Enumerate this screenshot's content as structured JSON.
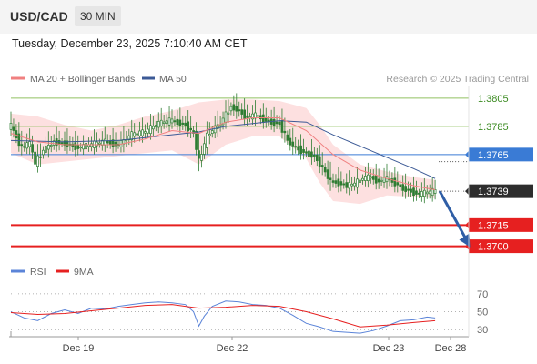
{
  "header": {
    "symbol": "USD/CAD",
    "timeframe": "30 MIN",
    "datetime": "Tuesday, December 23, 2025 7:10:40 AM CET"
  },
  "colors": {
    "candle": "#2e7d32",
    "ma20": "#f08080",
    "bollinger_fill": "#fde0e0",
    "ma50": "#3c5a96",
    "resistance": "#90c060",
    "pivot": "#3a7bd5",
    "support": "#e62020",
    "current_box": "#2d2d2d",
    "arrow": "#2f5ea6",
    "rsi": "#5b84d8",
    "rsi_ma": "#e62020"
  },
  "chart_data": [
    {
      "type": "candlestick",
      "legend": [
        {
          "label": "MA 20 + Bollinger Bands",
          "color": "#f08080"
        },
        {
          "label": "MA 50",
          "color": "#3c5a96"
        }
      ],
      "watermark": "Research © 2025 Trading Central",
      "x_ticks": [
        "Dec 19",
        "Dec 22",
        "Dec 23",
        "Dec 28"
      ],
      "ylim": [
        1.3692,
        1.3812
      ],
      "levels": [
        {
          "kind": "resistance",
          "value": 1.3805,
          "label": "1.3805"
        },
        {
          "kind": "resistance",
          "value": 1.3785,
          "label": "1.3785"
        },
        {
          "kind": "pivot",
          "value": 1.3765,
          "label": "1.3765"
        },
        {
          "kind": "current",
          "value": 1.3739,
          "label": "1.3739"
        },
        {
          "kind": "support",
          "value": 1.3715,
          "label": "1.3715"
        },
        {
          "kind": "support",
          "value": 1.37,
          "label": "1.3700"
        }
      ],
      "close_path": [
        [
          0,
          1.3785
        ],
        [
          4,
          1.377
        ],
        [
          7,
          1.3773
        ],
        [
          9,
          1.3759
        ],
        [
          12,
          1.3768
        ],
        [
          16,
          1.3774
        ],
        [
          20,
          1.3773
        ],
        [
          25,
          1.377
        ],
        [
          30,
          1.3772
        ],
        [
          35,
          1.3774
        ],
        [
          40,
          1.3772
        ],
        [
          45,
          1.3779
        ],
        [
          50,
          1.3781
        ],
        [
          55,
          1.3787
        ],
        [
          60,
          1.3789
        ],
        [
          65,
          1.3786
        ],
        [
          68,
          1.378
        ],
        [
          70,
          1.376
        ],
        [
          73,
          1.3778
        ],
        [
          76,
          1.3784
        ],
        [
          78,
          1.3787
        ],
        [
          80,
          1.3793
        ],
        [
          82,
          1.3799
        ],
        [
          85,
          1.3796
        ],
        [
          88,
          1.3791
        ],
        [
          91,
          1.3793
        ],
        [
          94,
          1.379
        ],
        [
          97,
          1.3788
        ],
        [
          100,
          1.3787
        ],
        [
          103,
          1.3775
        ],
        [
          106,
          1.377
        ],
        [
          110,
          1.3766
        ],
        [
          113,
          1.3764
        ],
        [
          116,
          1.3756
        ],
        [
          119,
          1.3746
        ],
        [
          122,
          1.3745
        ],
        [
          125,
          1.3743
        ],
        [
          128,
          1.3744
        ],
        [
          131,
          1.3748
        ],
        [
          134,
          1.3749
        ],
        [
          137,
          1.3746
        ],
        [
          140,
          1.3748
        ],
        [
          143,
          1.3745
        ],
        [
          146,
          1.3741
        ],
        [
          149,
          1.3739
        ],
        [
          152,
          1.3737
        ],
        [
          155,
          1.3738
        ],
        [
          158,
          1.3739
        ]
      ],
      "ma20": [
        [
          0,
          1.378
        ],
        [
          10,
          1.3774
        ],
        [
          20,
          1.3772
        ],
        [
          30,
          1.3772
        ],
        [
          40,
          1.3772
        ],
        [
          50,
          1.3776
        ],
        [
          60,
          1.3782
        ],
        [
          70,
          1.378
        ],
        [
          80,
          1.3788
        ],
        [
          90,
          1.3791
        ],
        [
          100,
          1.3791
        ],
        [
          110,
          1.3782
        ],
        [
          120,
          1.3765
        ],
        [
          130,
          1.3754
        ],
        [
          140,
          1.3748
        ],
        [
          150,
          1.3743
        ],
        [
          158,
          1.374
        ]
      ],
      "ma50": [
        [
          0,
          1.3775
        ],
        [
          20,
          1.3774
        ],
        [
          40,
          1.3775
        ],
        [
          60,
          1.3779
        ],
        [
          70,
          1.3781
        ],
        [
          80,
          1.3785
        ],
        [
          90,
          1.3787
        ],
        [
          100,
          1.3789
        ],
        [
          110,
          1.3788
        ],
        [
          120,
          1.3779
        ],
        [
          130,
          1.3771
        ],
        [
          140,
          1.3763
        ],
        [
          150,
          1.3755
        ],
        [
          158,
          1.3748
        ]
      ],
      "bb_upper": [
        [
          0,
          1.3794
        ],
        [
          10,
          1.3792
        ],
        [
          20,
          1.3786
        ],
        [
          30,
          1.3782
        ],
        [
          40,
          1.3786
        ],
        [
          50,
          1.3792
        ],
        [
          60,
          1.3796
        ],
        [
          70,
          1.3802
        ],
        [
          80,
          1.3804
        ],
        [
          90,
          1.3804
        ],
        [
          100,
          1.3803
        ],
        [
          110,
          1.3798
        ],
        [
          115,
          1.3786
        ],
        [
          120,
          1.3772
        ],
        [
          130,
          1.3758
        ],
        [
          140,
          1.3753
        ],
        [
          150,
          1.3749
        ],
        [
          158,
          1.3747
        ]
      ],
      "bb_lower": [
        [
          0,
          1.3766
        ],
        [
          10,
          1.3758
        ],
        [
          20,
          1.376
        ],
        [
          30,
          1.3762
        ],
        [
          40,
          1.3764
        ],
        [
          50,
          1.3766
        ],
        [
          60,
          1.3768
        ],
        [
          70,
          1.3758
        ],
        [
          80,
          1.3772
        ],
        [
          90,
          1.3778
        ],
        [
          100,
          1.3778
        ],
        [
          110,
          1.3762
        ],
        [
          115,
          1.3745
        ],
        [
          120,
          1.3732
        ],
        [
          130,
          1.373
        ],
        [
          140,
          1.3736
        ],
        [
          150,
          1.3735
        ],
        [
          158,
          1.3734
        ]
      ],
      "forecast_arrow": {
        "from": [
          158,
          1.3739
        ],
        "to": [
          170,
          1.37
        ]
      }
    },
    {
      "type": "line",
      "name": "rsi-panel",
      "legend": [
        {
          "label": "RSI",
          "color": "#5b84d8"
        },
        {
          "label": "9MA",
          "color": "#e62020"
        }
      ],
      "ylim": [
        18,
        78
      ],
      "y_ticks": [
        70,
        50,
        30
      ],
      "series": [
        {
          "name": "RSI",
          "x": [
            0,
            5,
            10,
            15,
            20,
            25,
            30,
            35,
            40,
            45,
            50,
            55,
            60,
            65,
            68,
            70,
            72,
            75,
            80,
            85,
            90,
            95,
            100,
            105,
            110,
            115,
            120,
            125,
            130,
            135,
            140,
            145,
            150,
            155,
            158
          ],
          "values": [
            50,
            43,
            40,
            48,
            52,
            48,
            54,
            53,
            56,
            58,
            60,
            61,
            60,
            58,
            50,
            34,
            45,
            56,
            62,
            61,
            58,
            57,
            54,
            46,
            37,
            33,
            28,
            27,
            26,
            29,
            34,
            40,
            41,
            44,
            43
          ]
        },
        {
          "name": "9MA",
          "x": [
            0,
            10,
            20,
            30,
            40,
            50,
            60,
            70,
            80,
            90,
            100,
            110,
            120,
            130,
            140,
            150,
            158
          ],
          "values": [
            49,
            47,
            48,
            51,
            54,
            57,
            58,
            54,
            55,
            57,
            56,
            50,
            42,
            33,
            35,
            38,
            40
          ]
        }
      ]
    }
  ]
}
